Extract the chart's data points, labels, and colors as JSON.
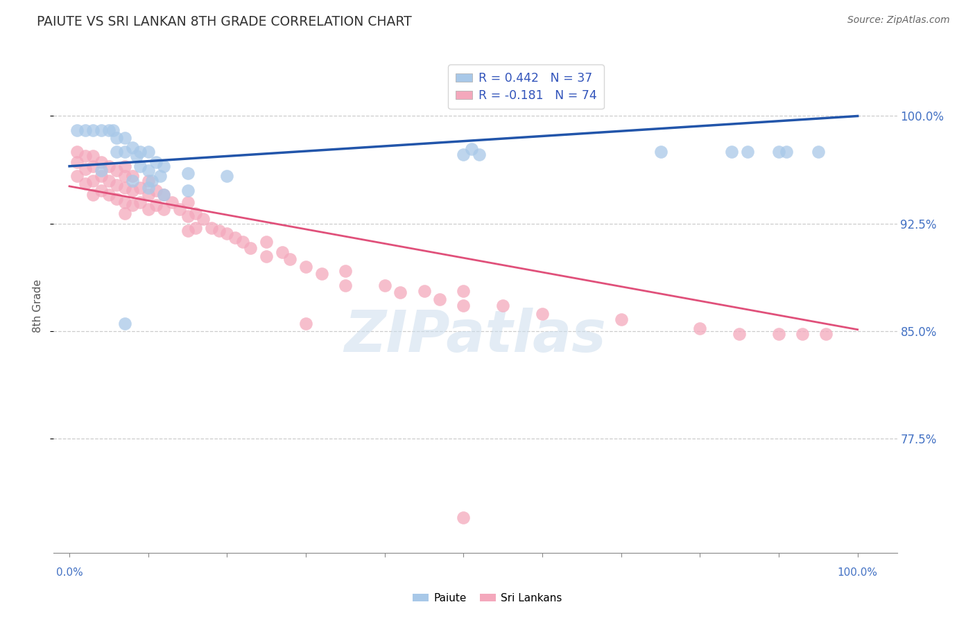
{
  "title": "PAIUTE VS SRI LANKAN 8TH GRADE CORRELATION CHART",
  "source": "Source: ZipAtlas.com",
  "ylabel": "8th Grade",
  "yticks": [
    0.775,
    0.85,
    0.925,
    1.0
  ],
  "ytick_labels": [
    "77.5%",
    "85.0%",
    "92.5%",
    "100.0%"
  ],
  "xlim": [
    -0.02,
    1.05
  ],
  "ylim": [
    0.695,
    1.04
  ],
  "blue_line_start_y": 0.965,
  "blue_line_end_y": 1.0,
  "pink_line_start_y": 0.951,
  "pink_line_end_y": 0.851,
  "paiute_x": [
    0.01,
    0.02,
    0.03,
    0.04,
    0.05,
    0.055,
    0.06,
    0.06,
    0.07,
    0.07,
    0.08,
    0.085,
    0.09,
    0.09,
    0.1,
    0.1,
    0.105,
    0.11,
    0.115,
    0.12,
    0.04,
    0.08,
    0.1,
    0.12,
    0.15,
    0.15,
    0.2,
    0.5,
    0.51,
    0.52,
    0.75,
    0.84,
    0.86,
    0.9,
    0.91,
    0.95,
    0.07
  ],
  "paiute_y": [
    0.99,
    0.99,
    0.99,
    0.99,
    0.99,
    0.99,
    0.985,
    0.975,
    0.985,
    0.975,
    0.978,
    0.972,
    0.975,
    0.965,
    0.975,
    0.962,
    0.955,
    0.968,
    0.958,
    0.965,
    0.962,
    0.955,
    0.95,
    0.945,
    0.96,
    0.948,
    0.958,
    0.973,
    0.977,
    0.973,
    0.975,
    0.975,
    0.975,
    0.975,
    0.975,
    0.975,
    0.855
  ],
  "srilanka_x": [
    0.01,
    0.01,
    0.01,
    0.02,
    0.02,
    0.02,
    0.03,
    0.03,
    0.03,
    0.03,
    0.04,
    0.04,
    0.04,
    0.05,
    0.05,
    0.05,
    0.06,
    0.06,
    0.06,
    0.07,
    0.07,
    0.07,
    0.07,
    0.07,
    0.08,
    0.08,
    0.08,
    0.09,
    0.09,
    0.1,
    0.1,
    0.1,
    0.11,
    0.11,
    0.12,
    0.12,
    0.13,
    0.14,
    0.15,
    0.15,
    0.15,
    0.16,
    0.16,
    0.17,
    0.18,
    0.19,
    0.2,
    0.21,
    0.22,
    0.23,
    0.25,
    0.25,
    0.27,
    0.28,
    0.3,
    0.32,
    0.35,
    0.35,
    0.4,
    0.42,
    0.45,
    0.47,
    0.5,
    0.5,
    0.55,
    0.6,
    0.5,
    0.7,
    0.8,
    0.85,
    0.9,
    0.93,
    0.96,
    0.3
  ],
  "srilanka_y": [
    0.975,
    0.968,
    0.958,
    0.972,
    0.963,
    0.953,
    0.972,
    0.965,
    0.955,
    0.945,
    0.968,
    0.958,
    0.948,
    0.965,
    0.955,
    0.945,
    0.962,
    0.952,
    0.942,
    0.965,
    0.958,
    0.95,
    0.94,
    0.932,
    0.958,
    0.948,
    0.938,
    0.95,
    0.94,
    0.955,
    0.945,
    0.935,
    0.948,
    0.938,
    0.945,
    0.935,
    0.94,
    0.935,
    0.94,
    0.93,
    0.92,
    0.932,
    0.922,
    0.928,
    0.922,
    0.92,
    0.918,
    0.915,
    0.912,
    0.908,
    0.912,
    0.902,
    0.905,
    0.9,
    0.895,
    0.89,
    0.892,
    0.882,
    0.882,
    0.877,
    0.878,
    0.872,
    0.878,
    0.868,
    0.868,
    0.862,
    0.72,
    0.858,
    0.852,
    0.848,
    0.848,
    0.848,
    0.848,
    0.855
  ],
  "blue_color": "#a8c8e8",
  "pink_color": "#f4a8bc",
  "blue_line_color": "#2255aa",
  "pink_line_color": "#e0507a",
  "watermark_text": "ZIPatlas",
  "background_color": "#ffffff"
}
